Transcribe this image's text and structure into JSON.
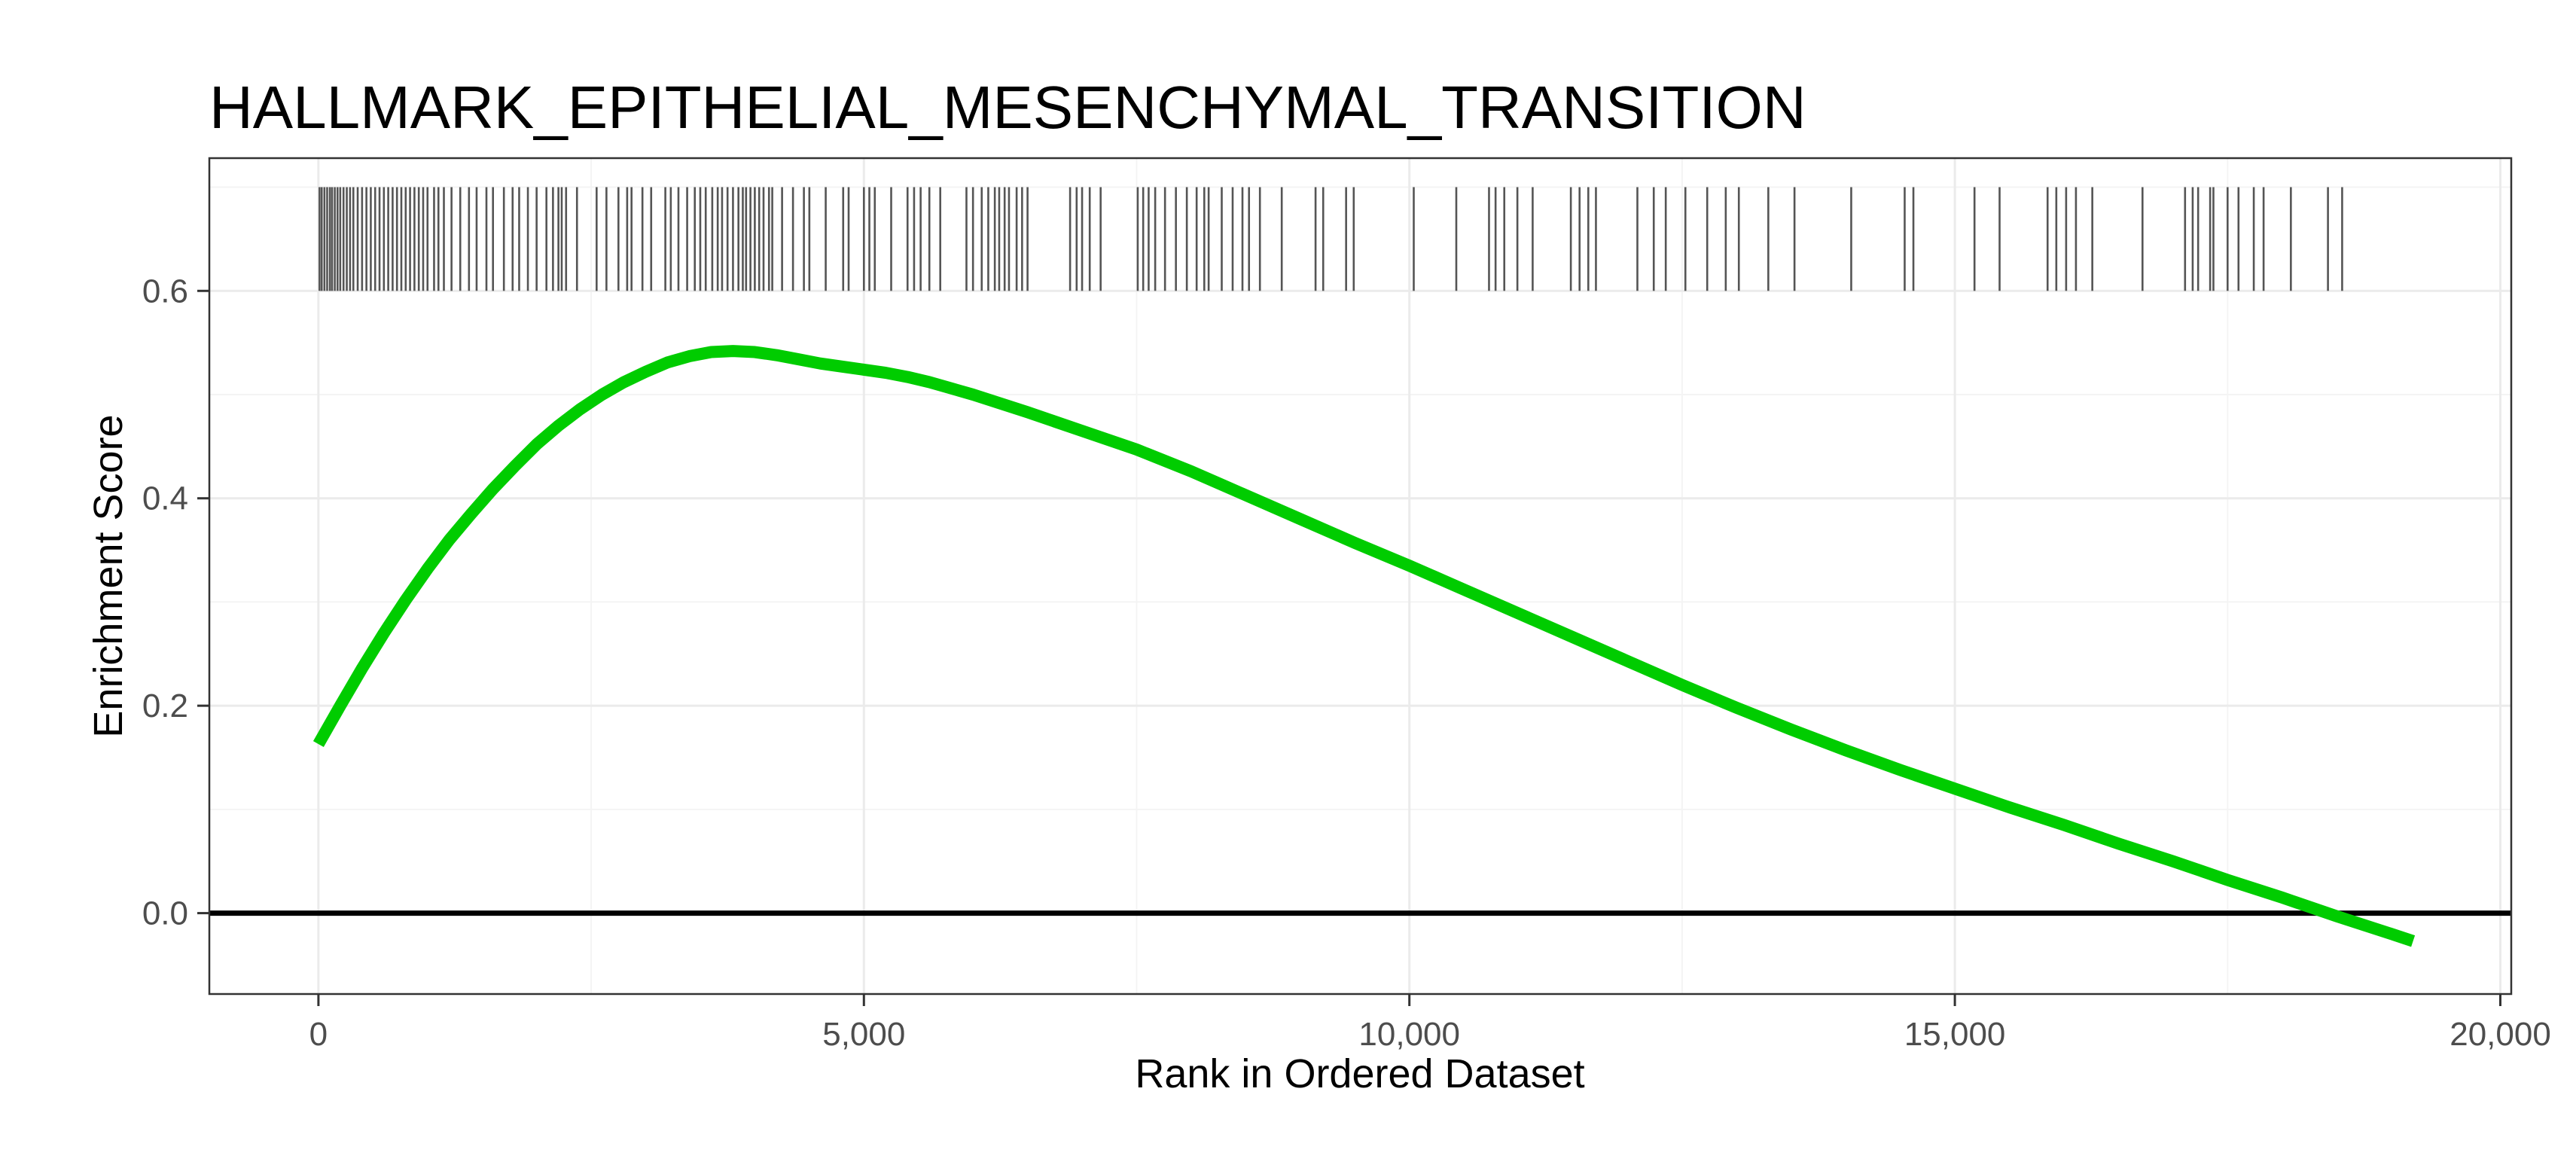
{
  "chart_data": {
    "type": "line",
    "title": "HALLMARK_EPITHELIAL_MESENCHYMAL_TRANSITION",
    "xlabel": "Rank in Ordered Dataset",
    "ylabel": "Enrichment Score",
    "xlim": [
      -1000,
      20100
    ],
    "ylim": [
      -0.078,
      0.728
    ],
    "x_ticks": [
      0,
      5000,
      10000,
      15000,
      20000
    ],
    "x_tick_labels": [
      "0",
      "5,000",
      "10,000",
      "15,000",
      "20,000"
    ],
    "y_ticks": [
      0.0,
      0.2,
      0.4,
      0.6
    ],
    "y_tick_labels": [
      "0.0",
      "0.2",
      "0.4",
      "0.6"
    ],
    "grid": true,
    "hline": 0.0,
    "line_color": "#00cc00",
    "series": [
      {
        "x": [
          0,
          200,
          400,
          600,
          800,
          1000,
          1200,
          1400,
          1600,
          1800,
          2000,
          2200,
          2400,
          2600,
          2800,
          3000,
          3200,
          3400,
          3600,
          3800,
          4000,
          4200,
          4400,
          4600,
          4800,
          5000,
          5200,
          5400,
          5600,
          5800,
          6000,
          6500,
          7000,
          7500,
          8000,
          8500,
          9000,
          9500,
          10000,
          10500,
          11000,
          11500,
          12000,
          12500,
          13000,
          13500,
          14000,
          14500,
          15000,
          15500,
          16000,
          16500,
          17000,
          17500,
          18000,
          18500,
          19000,
          19200
        ],
        "y": [
          0.163,
          0.2,
          0.236,
          0.27,
          0.302,
          0.332,
          0.36,
          0.385,
          0.409,
          0.431,
          0.452,
          0.47,
          0.486,
          0.5,
          0.512,
          0.522,
          0.531,
          0.537,
          0.541,
          0.542,
          0.541,
          0.538,
          0.534,
          0.53,
          0.527,
          0.524,
          0.521,
          0.517,
          0.512,
          0.506,
          0.5,
          0.483,
          0.465,
          0.447,
          0.426,
          0.403,
          0.38,
          0.357,
          0.335,
          0.312,
          0.289,
          0.266,
          0.243,
          0.22,
          0.198,
          0.177,
          0.157,
          0.138,
          0.12,
          0.102,
          0.085,
          0.067,
          0.05,
          0.032,
          0.015,
          -0.003,
          -0.02,
          -0.027
        ]
      }
    ],
    "rug": {
      "y_range": [
        0.6,
        0.7
      ],
      "x": [
        10,
        30,
        55,
        80,
        105,
        125,
        150,
        175,
        200,
        230,
        260,
        290,
        320,
        360,
        400,
        440,
        480,
        520,
        560,
        600,
        640,
        680,
        720,
        760,
        800,
        840,
        880,
        920,
        960,
        1000,
        1060,
        1100,
        1150,
        1220,
        1300,
        1380,
        1450,
        1540,
        1600,
        1700,
        1780,
        1840,
        1920,
        2000,
        2090,
        2150,
        2200,
        2230,
        2270,
        2370,
        2550,
        2640,
        2750,
        2830,
        2870,
        2970,
        3050,
        3180,
        3230,
        3300,
        3380,
        3450,
        3500,
        3550,
        3610,
        3660,
        3700,
        3750,
        3800,
        3850,
        3890,
        3920,
        3960,
        4000,
        4040,
        4080,
        4130,
        4160,
        4250,
        4350,
        4450,
        4500,
        4650,
        4810,
        4860,
        5000,
        5050,
        5100,
        5250,
        5400,
        5460,
        5520,
        5600,
        5700,
        5940,
        6000,
        6080,
        6140,
        6200,
        6240,
        6290,
        6330,
        6400,
        6450,
        6500,
        6890,
        6950,
        7000,
        7070,
        7170,
        7510,
        7560,
        7610,
        7670,
        7760,
        7860,
        7960,
        8050,
        8120,
        8160,
        8280,
        8380,
        8470,
        8530,
        8630,
        8830,
        9140,
        9210,
        9420,
        9490,
        10040,
        10430,
        10730,
        10790,
        10870,
        10990,
        11130,
        11480,
        11560,
        11640,
        11710,
        12090,
        12240,
        12350,
        12530,
        12730,
        12900,
        13020,
        13290,
        13530,
        14050,
        14540,
        14620,
        15180,
        15410,
        15850,
        15930,
        16020,
        16110,
        16260,
        16720,
        17110,
        17180,
        17230,
        17340,
        17370,
        17500,
        17600,
        17740,
        17830,
        18080,
        18420,
        18550
      ]
    }
  }
}
